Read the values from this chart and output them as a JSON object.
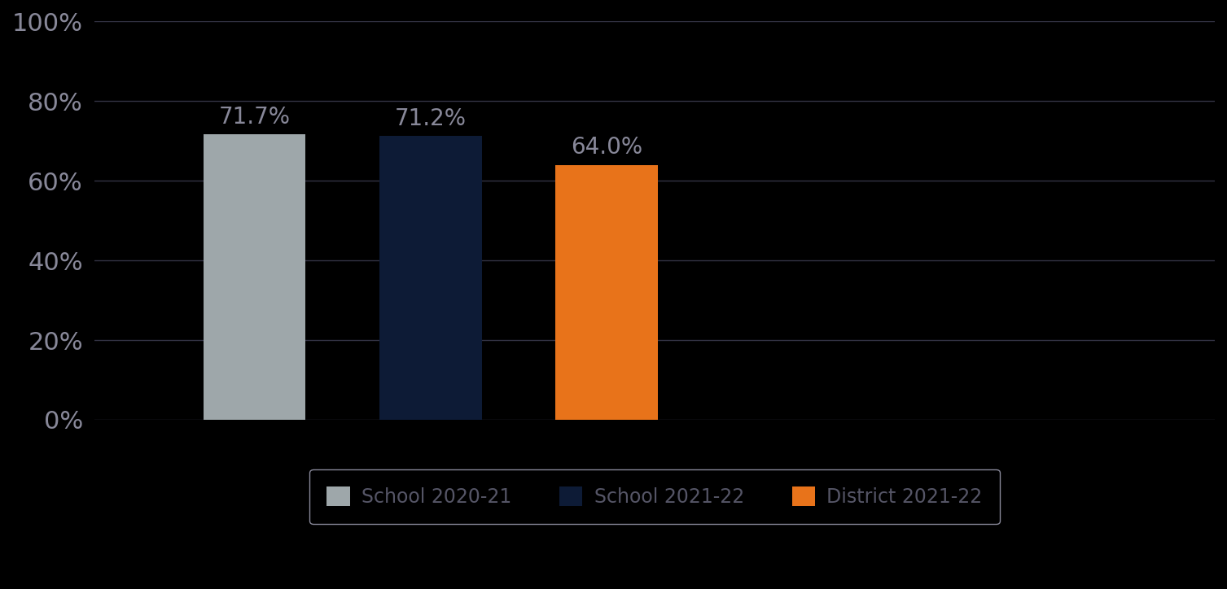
{
  "categories": [
    "School 2020-21",
    "School 2021-22",
    "District 2021-22"
  ],
  "values": [
    71.7,
    71.2,
    64.0
  ],
  "bar_colors": [
    "#9EA7AA",
    "#0D1B36",
    "#E8731A"
  ],
  "background_color": "#000000",
  "plot_bg_color": "#000000",
  "ylim": [
    0,
    100
  ],
  "ytick_labels": [
    "0%",
    "20%",
    "40%",
    "60%",
    "80%",
    "100%"
  ],
  "ytick_values": [
    0,
    20,
    40,
    60,
    80,
    100
  ],
  "bar_width": 0.32,
  "x_positions": [
    1.0,
    1.55,
    2.1
  ],
  "xlim": [
    0.5,
    4.0
  ],
  "label_fontsize": 20,
  "tick_fontsize": 22,
  "legend_fontsize": 17,
  "value_label_color": "#888899",
  "tick_color": "#888899",
  "grid_color": "#333344",
  "legend_edge_color": "#888899",
  "legend_face_color": "#000000",
  "legend_text_color": "#222233"
}
